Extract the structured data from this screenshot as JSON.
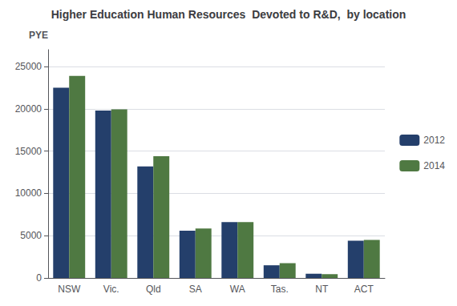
{
  "chart_data": {
    "type": "bar",
    "title": "Higher Education Human Resources  Devoted to R&D,  by location",
    "ylabel": "PYE",
    "categories": [
      "NSW",
      "Vic.",
      "Qld",
      "SA",
      "WA",
      "Tas.",
      "NT",
      "ACT"
    ],
    "series": [
      {
        "name": "2012",
        "color": "#243F6B",
        "values": [
          22500,
          19800,
          13200,
          5600,
          6600,
          1500,
          500,
          4400
        ]
      },
      {
        "name": "2014",
        "color": "#4F7942",
        "values": [
          23900,
          19950,
          14400,
          5850,
          6600,
          1750,
          450,
          4500
        ]
      }
    ],
    "ylim": [
      0,
      27000
    ],
    "yticks": [
      0,
      5000,
      10000,
      15000,
      20000,
      25000
    ],
    "grid": true,
    "legend": "right"
  }
}
